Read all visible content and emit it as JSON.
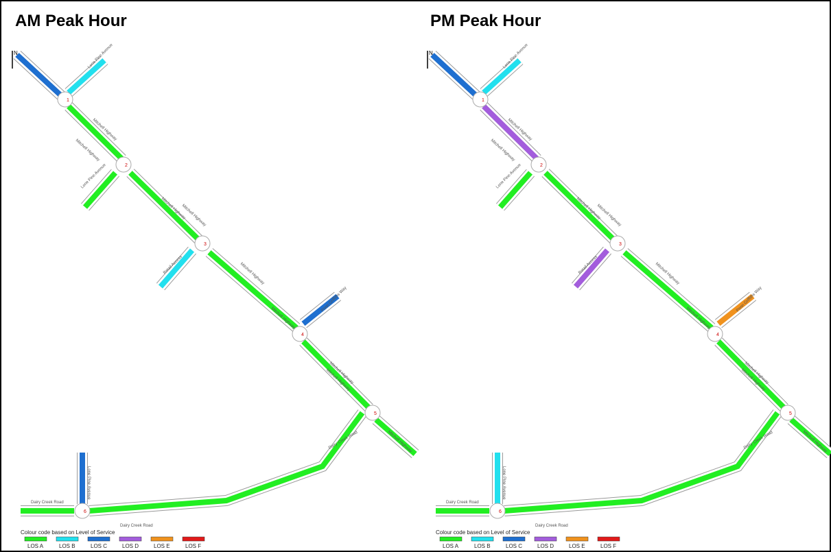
{
  "panels": [
    {
      "title": "AM Peak Hour",
      "segments_los": [
        2,
        1,
        0,
        0,
        0,
        1,
        0,
        2,
        0,
        0,
        0,
        0,
        2
      ]
    },
    {
      "title": "PM Peak Hour",
      "segments_los": [
        2,
        1,
        3,
        0,
        0,
        3,
        0,
        4,
        0,
        0,
        0,
        0,
        1
      ]
    }
  ],
  "north": "N",
  "road_labels": [
    "Mitchell Highway",
    "Lone Pine Avenue",
    "Retail Access",
    "Penn Griffiths Way",
    "Dairy Creek Road"
  ],
  "intersections": [
    1,
    2,
    3,
    4,
    5,
    6
  ],
  "legend": {
    "title": "Colour code based on Level of Service",
    "items": [
      {
        "label": "LOS A",
        "color": "#22ee22"
      },
      {
        "label": "LOS B",
        "color": "#22e0ee"
      },
      {
        "label": "LOS C",
        "color": "#1e6fd0"
      },
      {
        "label": "LOS D",
        "color": "#a35ddc"
      },
      {
        "label": "LOS E",
        "color": "#f0921e"
      },
      {
        "label": "LOS F",
        "color": "#e21a1a"
      }
    ]
  }
}
